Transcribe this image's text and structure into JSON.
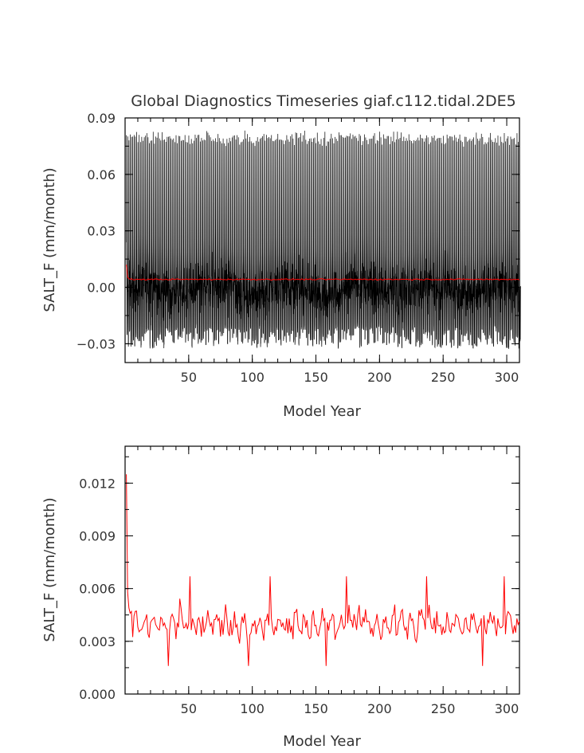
{
  "page_title": "Global Diagnostics Timeseries giaf.c112.tidal.2DE5",
  "colors": {
    "monthly": "#000000",
    "annual": "#ff0000",
    "axis": "#000000"
  },
  "chart_data": [
    {
      "type": "line",
      "title": "Global Diagnostics Timeseries giaf.c112.tidal.2DE5",
      "xlabel": "Model Year",
      "ylabel": "SALT_F (mm/month)",
      "xlim": [
        0,
        310
      ],
      "ylim": [
        -0.04,
        0.09
      ],
      "xticks": [
        50,
        100,
        150,
        200,
        250,
        300
      ],
      "xtick_labels": [
        "50",
        "100",
        "150",
        "200",
        "250",
        "300"
      ],
      "yticks": [
        -0.03,
        0.0,
        0.03,
        0.06,
        0.09
      ],
      "ytick_labels": [
        "−0.03",
        "0.00",
        "0.03",
        "0.06",
        "0.09"
      ],
      "series": [
        {
          "kind": "monthly",
          "color": "#000000",
          "samples_per_year": 12,
          "seasonal_peak_mean": 0.079,
          "seasonal_peak_range": [
            0.07,
            0.089
          ],
          "baseline_upper_range": [
            0.015,
            0.03
          ],
          "baseline_lower_range": [
            -0.033,
            -0.022
          ],
          "x_range": [
            1,
            310
          ]
        },
        {
          "kind": "annual",
          "color": "#ff0000",
          "start_value": 0.012,
          "mean": 0.0042,
          "x_range": [
            1,
            310
          ]
        }
      ]
    },
    {
      "type": "line",
      "title": "",
      "xlabel": "Model Year",
      "ylabel": "SALT_F (mm/month)",
      "xlim": [
        0,
        310
      ],
      "ylim": [
        0.0,
        0.0141
      ],
      "xticks": [
        50,
        100,
        150,
        200,
        250,
        300
      ],
      "xtick_labels": [
        "50",
        "100",
        "150",
        "200",
        "250",
        "300"
      ],
      "yticks": [
        0.0,
        0.003,
        0.006,
        0.009,
        0.012
      ],
      "ytick_labels": [
        "0.000",
        "0.003",
        "0.006",
        "0.009",
        "0.012"
      ],
      "series": [
        {
          "kind": "annual",
          "color": "#ff0000",
          "x_start": 1,
          "values_first_years": [
            0.0125,
            0.0058,
            0.0049,
            0.0046,
            0.0047
          ],
          "mean": 0.004,
          "min": 0.0016,
          "max": 0.0067,
          "min_years": [
            34,
            97,
            158,
            281
          ],
          "max_years": [
            51,
            114,
            174,
            237,
            298
          ],
          "x_range": [
            1,
            310
          ]
        }
      ]
    }
  ]
}
